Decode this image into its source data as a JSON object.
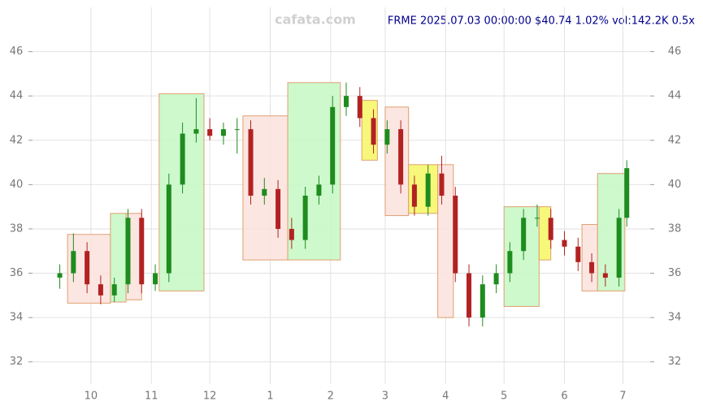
{
  "chart_data": {
    "type": "candlestick",
    "watermark": "cafata.com",
    "title": "FRME 2025.07.03 00:00:00 $40.74 1.02% vol:142.2K 0.5x",
    "xlim": [
      0,
      317
    ],
    "xticks": [
      {
        "value": 30,
        "label": "10"
      },
      {
        "value": 61,
        "label": "11"
      },
      {
        "value": 91,
        "label": "12"
      },
      {
        "value": 122,
        "label": "1"
      },
      {
        "value": 153,
        "label": "2"
      },
      {
        "value": 181,
        "label": "3"
      },
      {
        "value": 212,
        "label": "4"
      },
      {
        "value": 242,
        "label": "5"
      },
      {
        "value": 273,
        "label": "6"
      },
      {
        "value": 303,
        "label": "7"
      }
    ],
    "ylim": [
      31,
      48
    ],
    "yticks": [
      32,
      34,
      36,
      38,
      40,
      42,
      44,
      46
    ],
    "grid": true,
    "up_color": "#1e8c1e",
    "down_color": "#b22222",
    "x": [
      14,
      21,
      28,
      35,
      42,
      49,
      56,
      63,
      70,
      77,
      84,
      91,
      98,
      105,
      112,
      119,
      126,
      133,
      140,
      147,
      154,
      161,
      168,
      175,
      182,
      189,
      196,
      203,
      210,
      217,
      224,
      231,
      238,
      245,
      252,
      259,
      266,
      273,
      280,
      287,
      294,
      301,
      305
    ],
    "open": [
      35.8,
      36,
      37,
      35.5,
      35,
      35.5,
      38.5,
      35.5,
      36,
      40,
      42.3,
      42.5,
      42.2,
      42.5,
      42.5,
      39.5,
      39.8,
      38,
      37.5,
      39.5,
      40,
      43.5,
      44,
      43,
      41.8,
      42.5,
      40,
      39,
      40.5,
      39.5,
      36,
      34,
      35.5,
      36,
      37,
      38.5,
      38.5,
      37.5,
      37.2,
      36.5,
      36,
      35.8,
      38.5
    ],
    "high": [
      36.4,
      37.8,
      37.4,
      35.9,
      35.8,
      38.9,
      38.9,
      36.4,
      40.5,
      42.8,
      43.9,
      43,
      42.8,
      43,
      42.9,
      40.3,
      40.2,
      38.5,
      39.9,
      40.4,
      44,
      44.6,
      44.4,
      43.4,
      42.9,
      42.9,
      40.4,
      40.9,
      41.3,
      39.9,
      36.4,
      35.9,
      36.4,
      37.4,
      38.9,
      39.1,
      38.9,
      37.9,
      37.6,
      36.9,
      36.4,
      38.9,
      41.1
    ],
    "low": [
      35.3,
      35.6,
      35.1,
      34.6,
      34.7,
      35.1,
      35.1,
      35.2,
      35.6,
      39.6,
      41.9,
      42,
      41.8,
      41.4,
      39.1,
      39.1,
      37.6,
      37.1,
      37.1,
      39.1,
      39.6,
      43.1,
      42.6,
      41.4,
      41.4,
      39.6,
      38.6,
      38.6,
      39.1,
      35.6,
      33.6,
      33.6,
      35.1,
      35.6,
      36.6,
      38.1,
      37.1,
      36.8,
      36.1,
      35.6,
      35.4,
      35.4,
      38.1
    ],
    "close": [
      36,
      37,
      35.5,
      35,
      35.5,
      38.5,
      35.5,
      36,
      40,
      42.3,
      42.5,
      42.2,
      42.5,
      42.5,
      39.5,
      39.8,
      38,
      37.5,
      39.5,
      40,
      43.5,
      44,
      43,
      41.8,
      42.5,
      40,
      39,
      40.5,
      39.5,
      36,
      34,
      35.5,
      36,
      37,
      38.5,
      38.5,
      37.5,
      37.2,
      36.5,
      36,
      35.8,
      38.5,
      40.74
    ],
    "zones": [
      {
        "x": [
          18,
          40
        ],
        "y": [
          34.65,
          37.75
        ],
        "color": "#fbe3df"
      },
      {
        "x": [
          40,
          48
        ],
        "y": [
          34.7,
          38.7
        ],
        "color": "#c8f8c8"
      },
      {
        "x": [
          48,
          56
        ],
        "y": [
          34.8,
          38.7
        ],
        "color": "#fbe3df"
      },
      {
        "x": [
          65,
          88
        ],
        "y": [
          35.2,
          44.1
        ],
        "color": "#c8f8c8"
      },
      {
        "x": [
          108,
          131
        ],
        "y": [
          36.6,
          43.1
        ],
        "color": "#fbe3df"
      },
      {
        "x": [
          131,
          158
        ],
        "y": [
          36.6,
          44.6
        ],
        "color": "#c8f8c8"
      },
      {
        "x": [
          169,
          177
        ],
        "y": [
          41.1,
          43.8
        ],
        "color": "#f6f66a"
      },
      {
        "x": [
          181,
          193
        ],
        "y": [
          38.6,
          43.5
        ],
        "color": "#fbe3df"
      },
      {
        "x": [
          193,
          208
        ],
        "y": [
          38.7,
          40.9
        ],
        "color": "#f6f66a"
      },
      {
        "x": [
          208,
          216
        ],
        "y": [
          34,
          40.9
        ],
        "color": "#fbe3df"
      },
      {
        "x": [
          242,
          260
        ],
        "y": [
          34.5,
          39
        ],
        "color": "#c8f8c8"
      },
      {
        "x": [
          260,
          266
        ],
        "y": [
          36.6,
          39
        ],
        "color": "#f6f66a"
      },
      {
        "x": [
          282,
          290
        ],
        "y": [
          35.2,
          38.2
        ],
        "color": "#fbe3df"
      },
      {
        "x": [
          290,
          304
        ],
        "y": [
          35.2,
          40.5
        ],
        "color": "#c8f8c8"
      }
    ]
  }
}
